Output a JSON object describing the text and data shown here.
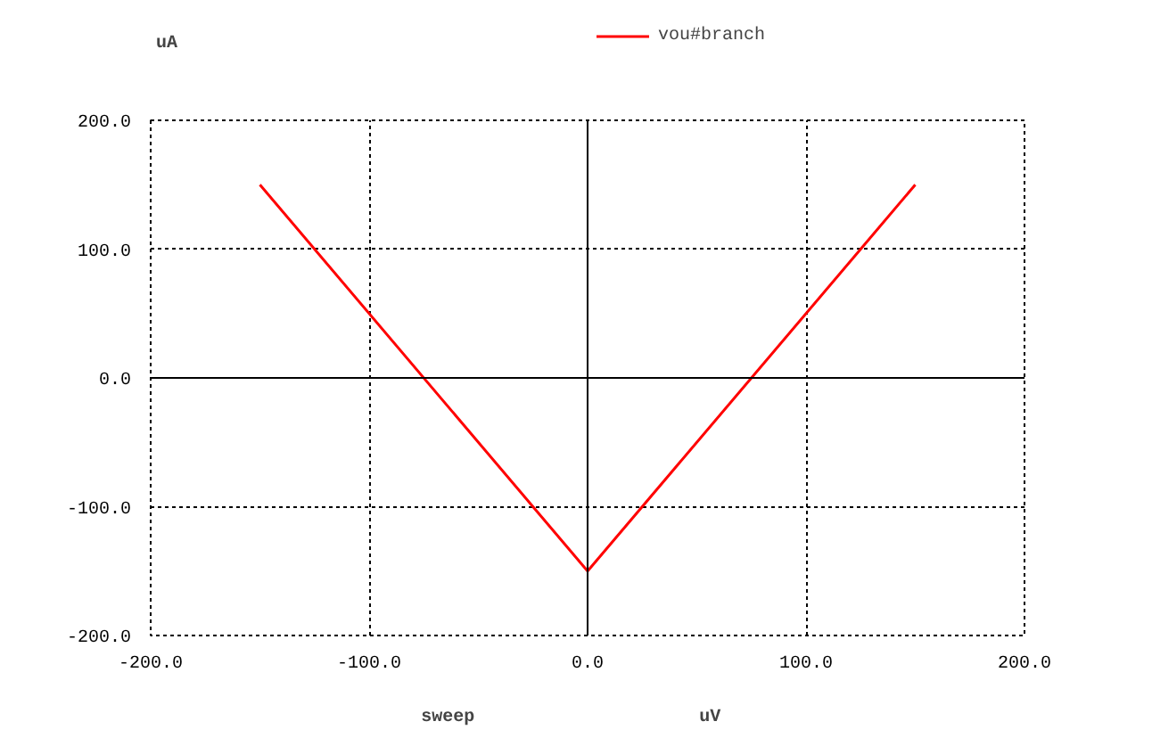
{
  "chart_data": {
    "type": "line",
    "xlabel": "sweep",
    "ylabel": "uA",
    "annotations": [
      "uV"
    ],
    "x": [
      -150,
      0,
      150
    ],
    "series": [
      {
        "name": "vou#branch",
        "color": "#ff0000",
        "values": [
          150,
          -150,
          150
        ]
      }
    ],
    "xlim": [
      -200,
      200
    ],
    "ylim": [
      -200,
      200
    ],
    "xticks": [
      {
        "value": -200,
        "label": "-200.0"
      },
      {
        "value": -100,
        "label": "-100.0"
      },
      {
        "value": 0,
        "label": "0.0"
      },
      {
        "value": 100,
        "label": "100.0"
      },
      {
        "value": 200,
        "label": "200.0"
      }
    ],
    "yticks": [
      {
        "value": -200,
        "label": "-200.0"
      },
      {
        "value": -100,
        "label": "-100.0"
      },
      {
        "value": 0,
        "label": "0.0"
      },
      {
        "value": 100,
        "label": "100.0"
      },
      {
        "value": 200,
        "label": "200.0"
      }
    ],
    "grid": true,
    "legend": "top",
    "line_style": "solid"
  }
}
